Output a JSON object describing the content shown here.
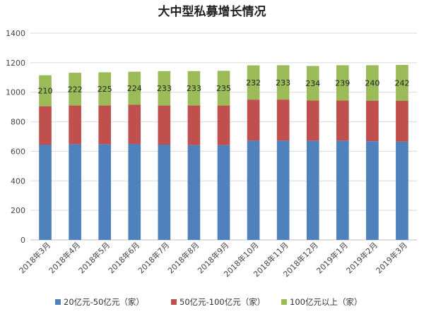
{
  "chart_data": {
    "type": "bar",
    "stacked": true,
    "title": "大中型私募增长情况",
    "categories": [
      "2018年3月",
      "2018年4月",
      "2018年5月",
      "2018年6月",
      "2018年7月",
      "2018年8月",
      "2018年9月",
      "2018年10月",
      "2018年11月",
      "2018年12月",
      "2019年1月",
      "2019年2月",
      "2019年3月"
    ],
    "series": [
      {
        "name": "20亿元-50亿元（家）",
        "color": "#4f81bd",
        "values": [
          645,
          648,
          648,
          650,
          645,
          642,
          642,
          672,
          672,
          672,
          672,
          668,
          665
        ]
      },
      {
        "name": "50亿元-100亿元（家）",
        "color": "#c0504d",
        "values": [
          260,
          262,
          262,
          265,
          265,
          268,
          268,
          278,
          278,
          272,
          272,
          275,
          278
        ]
      },
      {
        "name": "100亿元以上（家）",
        "color": "#9bbb59",
        "values": [
          210,
          222,
          225,
          224,
          233,
          233,
          235,
          232,
          233,
          234,
          239,
          240,
          242
        ]
      }
    ],
    "data_labels_series": "100亿元以上（家）",
    "ylim": [
      0,
      1400
    ],
    "yticks": [
      0,
      200,
      400,
      600,
      800,
      1000,
      1200,
      1400
    ],
    "grid": true,
    "legend_position": "bottom",
    "xlabel": "",
    "ylabel": ""
  }
}
